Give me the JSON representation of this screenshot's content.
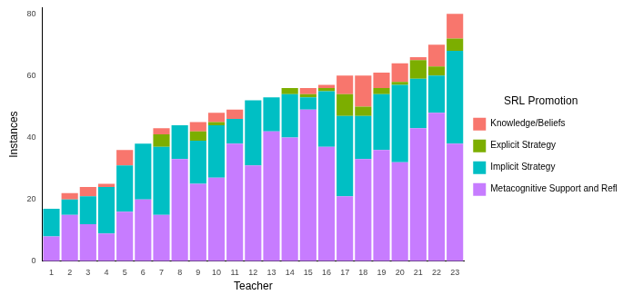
{
  "chart_data": {
    "type": "bar",
    "stacked": true,
    "x_label": "Teacher",
    "y_label": "Instances",
    "legend": "right",
    "legend_title": "SRL Promotion",
    "grid": false,
    "categories": [
      "1",
      "2",
      "3",
      "4",
      "5",
      "6",
      "7",
      "8",
      "9",
      "10",
      "11",
      "12",
      "13",
      "14",
      "15",
      "16",
      "17",
      "18",
      "19",
      "20",
      "21",
      "22",
      "23"
    ],
    "ylim": [
      0,
      82
    ],
    "yticks": [
      0,
      20,
      40,
      60,
      80
    ],
    "series": [
      {
        "name": "Metacognitive Support and Reflection",
        "color": "#C77CFF",
        "values": [
          8,
          15,
          12,
          9,
          16,
          20,
          15,
          33,
          25,
          27,
          38,
          31,
          42,
          40,
          49,
          37,
          21,
          33,
          36,
          32,
          43,
          48,
          38
        ]
      },
      {
        "name": "Implicit Strategy",
        "color": "#00BFC4",
        "values": [
          9,
          5,
          9,
          15,
          15,
          18,
          22,
          11,
          14,
          17,
          8,
          21,
          11,
          14,
          4,
          18,
          26,
          14,
          18,
          25,
          16,
          12,
          30
        ]
      },
      {
        "name": "Explicit Strategy",
        "color": "#7CAE00",
        "values": [
          0,
          0,
          0,
          0,
          0,
          0,
          4,
          0,
          3,
          1,
          0,
          0,
          0,
          2,
          1,
          1,
          7,
          3,
          2,
          1,
          6,
          3,
          4
        ]
      },
      {
        "name": "Knowledge/Beliefs",
        "color": "#F8766D",
        "values": [
          0,
          2,
          3,
          1,
          5,
          0,
          2,
          0,
          3,
          3,
          3,
          0,
          0,
          0,
          2,
          1,
          6,
          10,
          5,
          6,
          1,
          7,
          8
        ]
      }
    ]
  }
}
